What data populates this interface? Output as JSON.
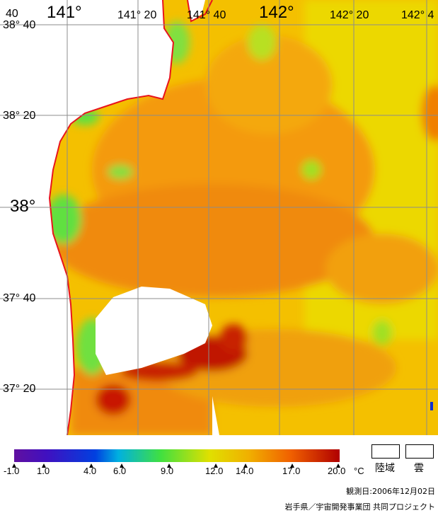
{
  "map": {
    "lon_labels": [
      {
        "text": "141°",
        "big": true
      },
      {
        "text": "141° 20",
        "big": false
      },
      {
        "text": "141° 40",
        "big": false
      },
      {
        "text": "142°",
        "big": true
      },
      {
        "text": "142° 20",
        "big": false
      },
      {
        "text": "142° 4",
        "big": false
      }
    ],
    "lat_labels": [
      {
        "text": "38° 40",
        "big": false
      },
      {
        "text": "38° 20",
        "big": false
      },
      {
        "text": "38°",
        "big": true
      },
      {
        "text": "37° 40",
        "big": false
      },
      {
        "text": "37° 20",
        "big": false
      }
    ],
    "corner_label": "40",
    "colors": {
      "coast": "#e8141c",
      "land": "#ffffff",
      "cloud": "#ffffff",
      "warm": "#f7a000",
      "hot": "#c01000",
      "cool": "#e8e000",
      "cold": "#60e030",
      "grid": "#8c8c8c"
    }
  },
  "legend": {
    "ticks": [
      "-1.0",
      "1.0",
      "4.0",
      "6.0",
      "9.0",
      "12.0",
      "14.0",
      "17.0",
      "20.0"
    ],
    "unit": "°C",
    "land_label": "陸域",
    "cloud_label": "雲"
  },
  "footer": {
    "date": "観測日:2006年12月02日",
    "credit": "岩手県／宇宙開発事業団 共同プロジェクト"
  }
}
